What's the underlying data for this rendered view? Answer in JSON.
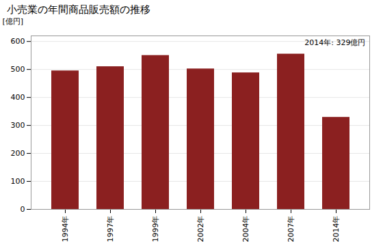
{
  "chart_data": {
    "type": "bar",
    "title": "小売業の年間商品販売額の推移",
    "ylabel": "[億円]",
    "annotation": "2014年: 329億円",
    "categories": [
      "1994年",
      "1997年",
      "1999年",
      "2002年",
      "2004年",
      "2007年",
      "2014年"
    ],
    "values": [
      495,
      510,
      550,
      502,
      488,
      555,
      329
    ],
    "color": "#8B2020",
    "ylim": [
      0,
      620
    ],
    "yticks": [
      0,
      100,
      200,
      300,
      400,
      500,
      600
    ],
    "grid": true
  }
}
